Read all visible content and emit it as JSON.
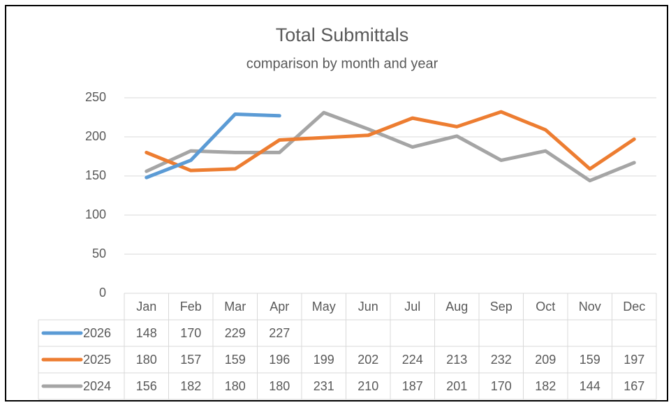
{
  "chart_data": {
    "type": "line",
    "title": "Total Submittals",
    "subtitle": "comparison by month and year",
    "categories": [
      "Jan",
      "Feb",
      "Mar",
      "Apr",
      "May",
      "Jun",
      "Jul",
      "Aug",
      "Sep",
      "Oct",
      "Nov",
      "Dec"
    ],
    "series": [
      {
        "name": "2026",
        "color": "#5b9bd5",
        "values": [
          148,
          170,
          229,
          227,
          null,
          null,
          null,
          null,
          null,
          null,
          null,
          null
        ]
      },
      {
        "name": "2025",
        "color": "#ed7d31",
        "values": [
          180,
          157,
          159,
          196,
          199,
          202,
          224,
          213,
          232,
          209,
          159,
          197
        ]
      },
      {
        "name": "2024",
        "color": "#a5a5a5",
        "values": [
          156,
          182,
          180,
          180,
          231,
          210,
          187,
          201,
          170,
          182,
          144,
          167
        ]
      }
    ],
    "ylim": [
      0,
      250
    ],
    "yticks": [
      0,
      50,
      100,
      150,
      200,
      250
    ],
    "grid": true,
    "data_table": true
  }
}
